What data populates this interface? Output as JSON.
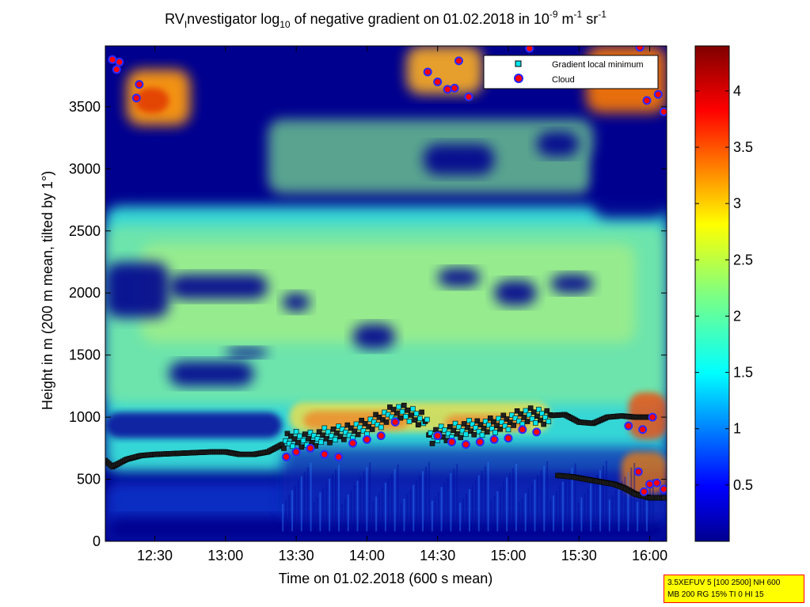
{
  "chart_data": {
    "type": "heatmap",
    "title": {
      "prefix": "RV",
      "prefix_sub": "I",
      "main": "nvestigator log",
      "log_sub": "10",
      "middle": " of negative gradient on 01.02.2018 in 10",
      "exp1": "-9",
      "unit1": " m",
      "exp2": "-1",
      "unit2": " sr",
      "exp3": "-1"
    },
    "xlabel": "Time on 01.02.2018 (600 s mean)",
    "ylabel": "Height in m (200 m mean, tilted by 1°)",
    "x_range_hours": [
      12.15,
      16.12
    ],
    "x_ticks": [
      {
        "value": 12.5,
        "label": "12:30"
      },
      {
        "value": 13.0,
        "label": "13:00"
      },
      {
        "value": 13.5,
        "label": "13:30"
      },
      {
        "value": 14.0,
        "label": "14:00"
      },
      {
        "value": 14.5,
        "label": "14:30"
      },
      {
        "value": 15.0,
        "label": "15:00"
      },
      {
        "value": 15.5,
        "label": "15:30"
      },
      {
        "value": 16.0,
        "label": "16:00"
      }
    ],
    "y_range": [
      0,
      3990
    ],
    "y_ticks": [
      0,
      500,
      1000,
      1500,
      2000,
      2500,
      3000,
      3500
    ],
    "colorbar": {
      "range": [
        0,
        4.4
      ],
      "ticks": [
        0.5,
        1,
        1.5,
        2,
        2.5,
        3,
        3.5,
        4
      ],
      "colormap": "jet"
    },
    "legend": {
      "placement": "top-right",
      "entries": [
        {
          "label": "Gradient local minimum",
          "marker": "square",
          "color": "#00e5ee"
        },
        {
          "label": "Cloud",
          "marker": "circle",
          "color": "#ff0000"
        }
      ]
    },
    "gradient_local_minimum": {
      "main_layer": [
        [
          12.15,
          650
        ],
        [
          12.2,
          600
        ],
        [
          12.3,
          660
        ],
        [
          12.4,
          690
        ],
        [
          12.5,
          700
        ],
        [
          12.6,
          705
        ],
        [
          12.7,
          710
        ],
        [
          12.8,
          715
        ],
        [
          12.9,
          720
        ],
        [
          13.0,
          720
        ],
        [
          13.1,
          700
        ],
        [
          13.2,
          700
        ],
        [
          13.3,
          720
        ],
        [
          13.4,
          780
        ],
        [
          13.5,
          830
        ],
        [
          13.6,
          820
        ],
        [
          13.7,
          850
        ],
        [
          13.8,
          860
        ],
        [
          13.9,
          900
        ],
        [
          14.0,
          930
        ],
        [
          14.1,
          980
        ],
        [
          14.2,
          1040
        ],
        [
          14.3,
          1020
        ],
        [
          14.4,
          1000
        ],
        [
          14.45,
          850
        ],
        [
          14.55,
          870
        ],
        [
          14.7,
          900
        ],
        [
          14.85,
          930
        ],
        [
          15.0,
          960
        ],
        [
          15.1,
          1000
        ],
        [
          15.25,
          1010
        ],
        [
          15.4,
          1020
        ],
        [
          15.5,
          960
        ],
        [
          15.6,
          950
        ],
        [
          15.7,
          1000
        ],
        [
          15.8,
          1010
        ],
        [
          15.9,
          1000
        ],
        [
          16.0,
          1000
        ]
      ],
      "lower_layer": [
        [
          15.35,
          530
        ],
        [
          15.45,
          520
        ],
        [
          15.55,
          500
        ],
        [
          15.65,
          480
        ],
        [
          15.75,
          460
        ],
        [
          15.82,
          430
        ],
        [
          15.9,
          380
        ],
        [
          16.0,
          350
        ],
        [
          16.1,
          350
        ]
      ]
    },
    "cloud": [
      [
        12.2,
        3880
      ],
      [
        12.23,
        3800
      ],
      [
        12.25,
        3860
      ],
      [
        12.37,
        3570
      ],
      [
        12.39,
        3680
      ],
      [
        13.43,
        680
      ],
      [
        13.5,
        720
      ],
      [
        13.6,
        750
      ],
      [
        13.7,
        700
      ],
      [
        13.8,
        680
      ],
      [
        13.9,
        790
      ],
      [
        14.0,
        820
      ],
      [
        14.1,
        850
      ],
      [
        14.2,
        960
      ],
      [
        14.5,
        850
      ],
      [
        14.6,
        800
      ],
      [
        14.7,
        780
      ],
      [
        14.8,
        800
      ],
      [
        14.9,
        820
      ],
      [
        15.0,
        830
      ],
      [
        15.1,
        900
      ],
      [
        15.2,
        880
      ],
      [
        14.43,
        3780
      ],
      [
        14.5,
        3700
      ],
      [
        14.57,
        3640
      ],
      [
        14.62,
        3650
      ],
      [
        14.65,
        3870
      ],
      [
        14.72,
        3580
      ],
      [
        15.15,
        3970
      ],
      [
        15.93,
        3980
      ],
      [
        15.98,
        3550
      ],
      [
        16.06,
        3600
      ],
      [
        16.1,
        3460
      ],
      [
        15.85,
        930
      ],
      [
        15.95,
        900
      ],
      [
        16.02,
        1000
      ],
      [
        15.92,
        560
      ],
      [
        15.96,
        400
      ],
      [
        16.0,
        460
      ],
      [
        16.05,
        470
      ],
      [
        16.1,
        420
      ]
    ]
  },
  "info_box": {
    "line1": "3.5XEFUV 5 [100 2500] NH 600",
    "line2": "MB 200 RG 15% TI 0 HI 15"
  }
}
